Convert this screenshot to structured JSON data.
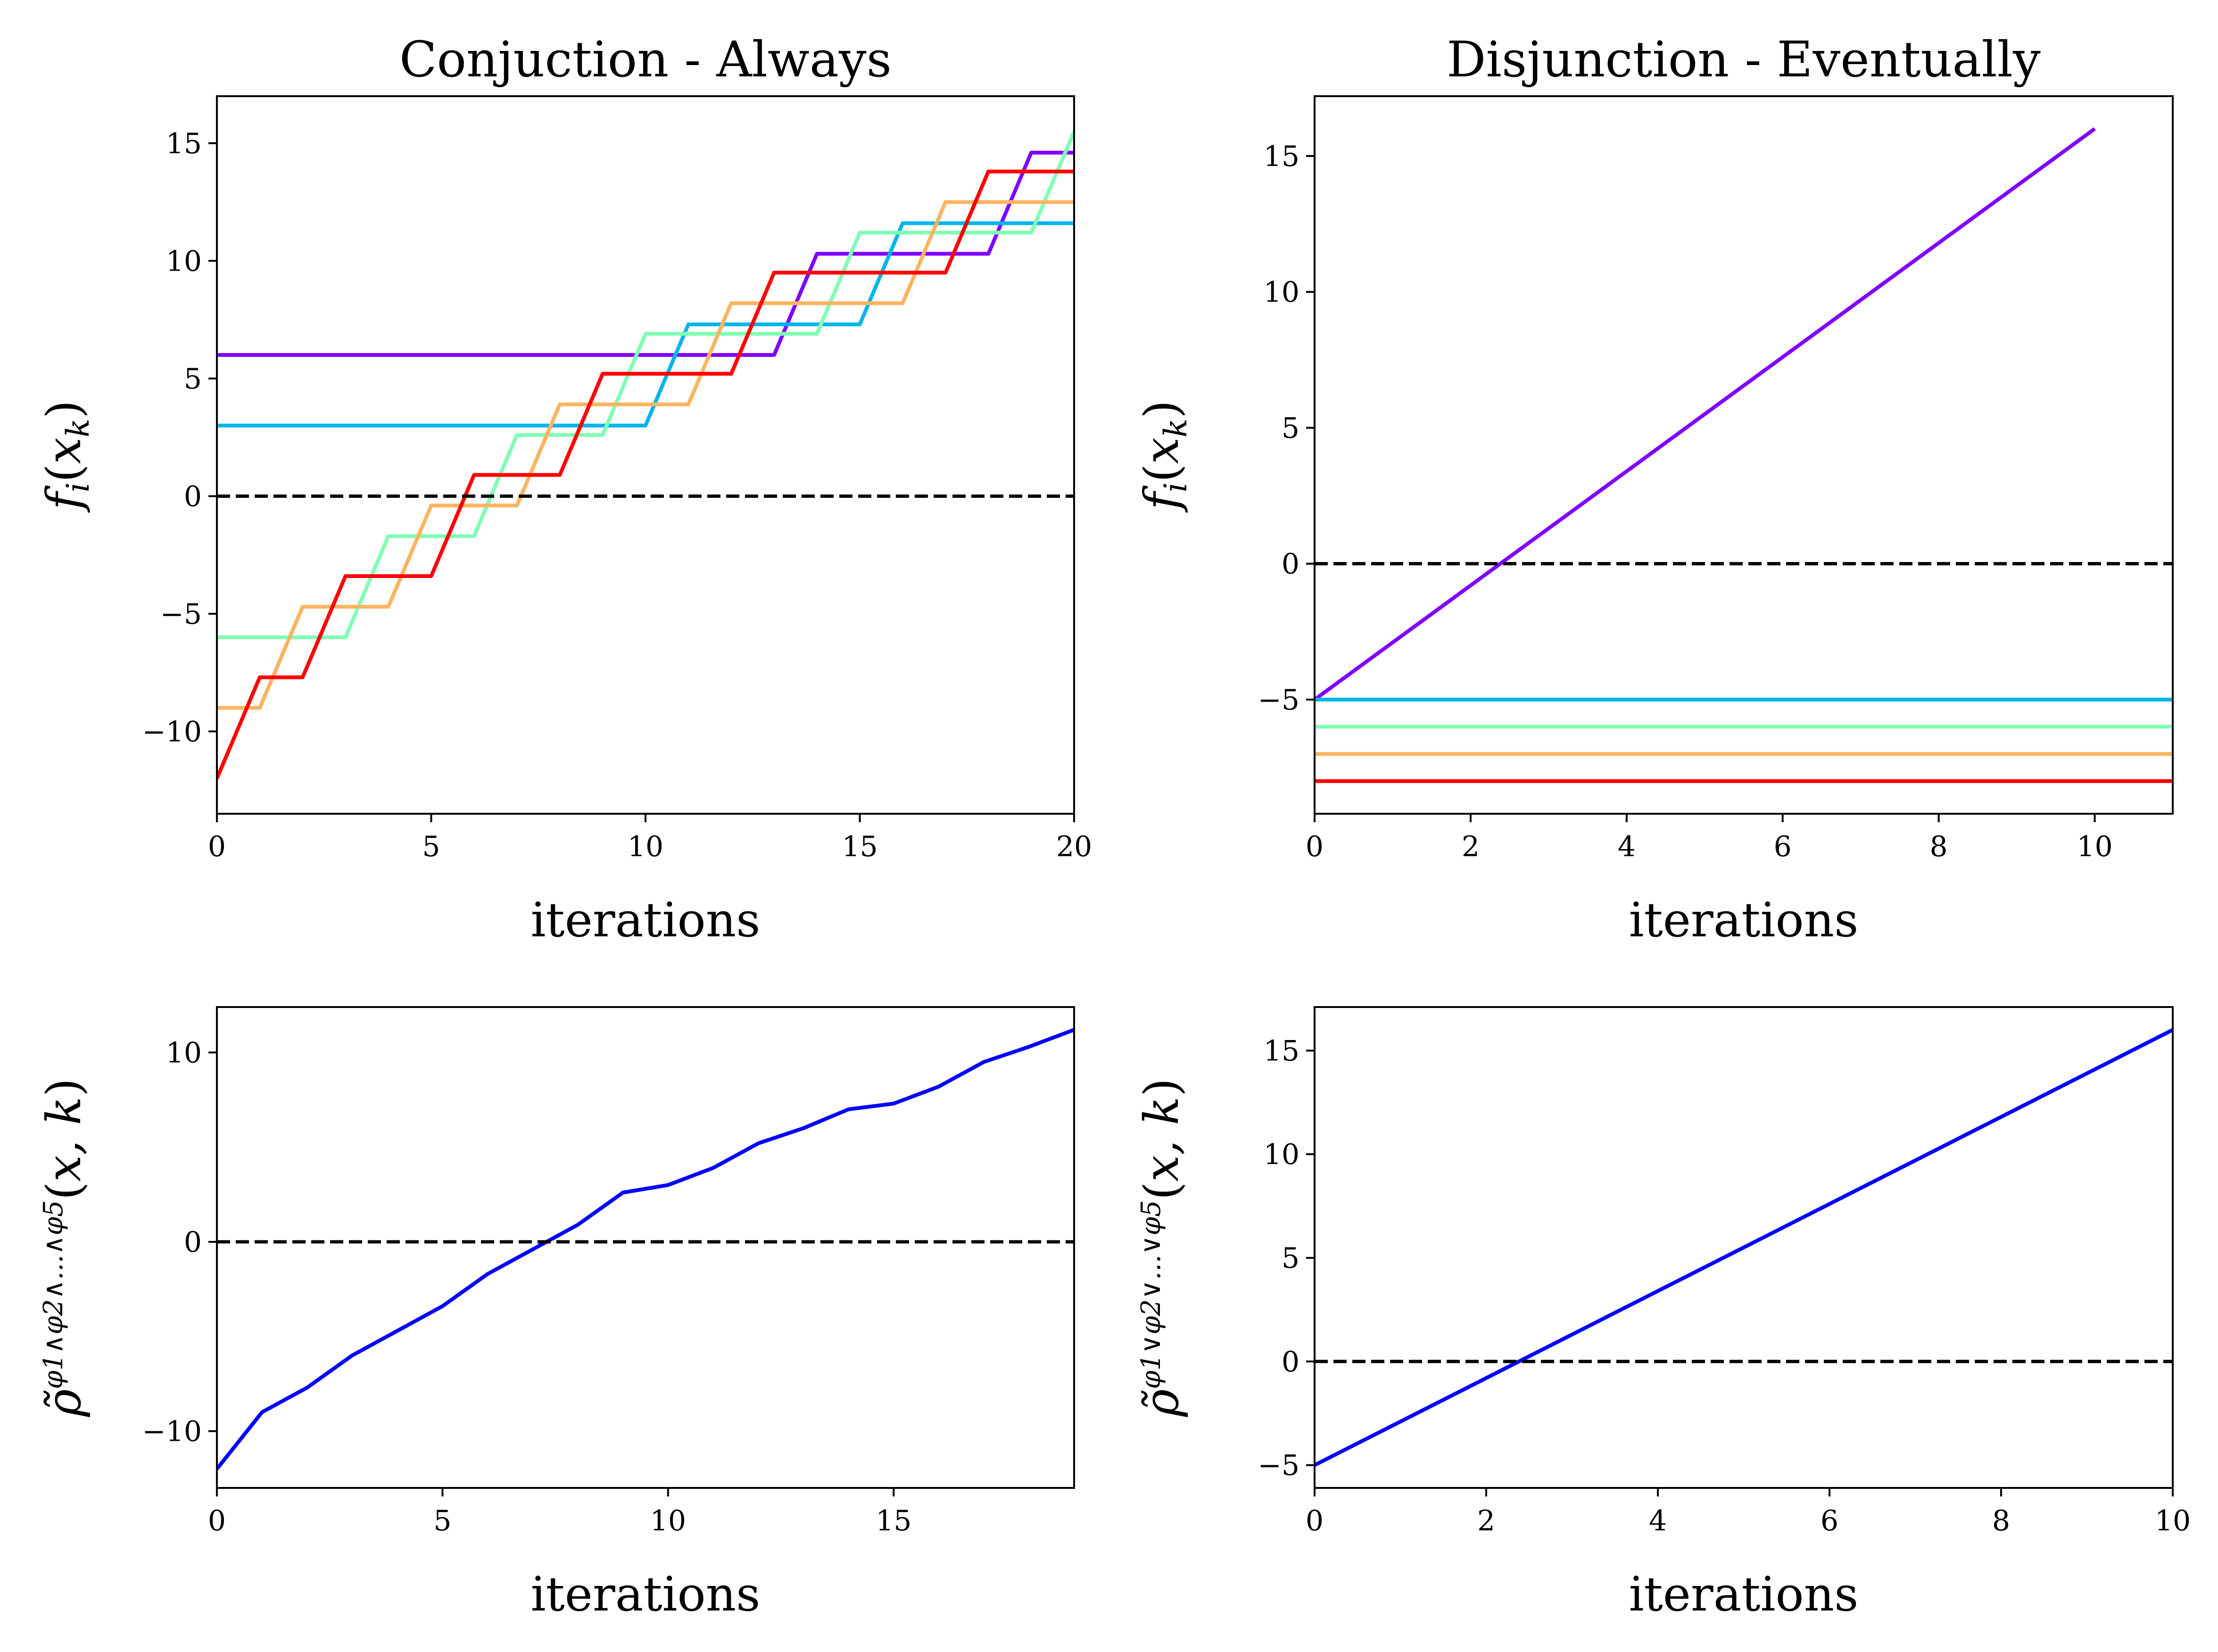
{
  "chart_data": [
    {
      "id": "conj-top",
      "type": "line",
      "title": "Conjuction - Always",
      "xlabel": "iterations",
      "ylabel": {
        "base": "f",
        "sub": "i",
        "open": "(",
        "var": "x",
        "varsub": "k",
        "close": ")"
      },
      "xlim": [
        0,
        20
      ],
      "ylim": [
        -13.5,
        17
      ],
      "xticks": [
        0,
        5,
        10,
        15,
        20
      ],
      "yticks": [
        -10,
        -5,
        0,
        5,
        10,
        15
      ],
      "ytick_labels": [
        "−10",
        "−5",
        "0",
        "5",
        "10",
        "15"
      ],
      "reference_line": 0,
      "grid": false,
      "series": [
        {
          "color": "#8000ff",
          "x": [
            0,
            13,
            14,
            18,
            19,
            20
          ],
          "y": [
            6,
            6,
            10.3,
            10.3,
            14.6,
            14.6
          ],
          "step": true
        },
        {
          "color": "#00b4ec",
          "x": [
            0,
            10,
            11,
            15,
            16,
            20
          ],
          "y": [
            3,
            3,
            7.3,
            7.3,
            11.6,
            11.6
          ],
          "step": true
        },
        {
          "color": "#80ffb4",
          "x": [
            0,
            3,
            4,
            6,
            7,
            9,
            10,
            14,
            15,
            19,
            20
          ],
          "y": [
            -6,
            -6,
            -1.7,
            -1.7,
            2.6,
            2.6,
            6.9,
            6.9,
            11.2,
            11.2,
            15.5
          ],
          "step": true
        },
        {
          "color": "#ffb360",
          "x": [
            0,
            1,
            2,
            4,
            5,
            7,
            8,
            11,
            12,
            16,
            17,
            20
          ],
          "y": [
            -9,
            -9,
            -4.7,
            -4.7,
            -0.4,
            -0.4,
            3.9,
            3.9,
            8.2,
            8.2,
            12.5,
            12.5
          ],
          "step": true
        },
        {
          "color": "#ff0000",
          "x": [
            0,
            1,
            2,
            3,
            5,
            6,
            8,
            9,
            12,
            13,
            17,
            18,
            20
          ],
          "y": [
            -12,
            -7.7,
            -7.7,
            -3.4,
            -3.4,
            0.9,
            0.9,
            5.2,
            5.2,
            9.5,
            9.5,
            13.8,
            13.8
          ],
          "step": true
        }
      ]
    },
    {
      "id": "disj-top",
      "type": "line",
      "title": "Disjunction - Eventually",
      "xlabel": "iterations",
      "ylabel": {
        "base": "f",
        "sub": "i",
        "open": "(",
        "var": "x",
        "varsub": "k",
        "close": ")"
      },
      "xlim": [
        0,
        11
      ],
      "ylim": [
        -9.2,
        17.2
      ],
      "xticks": [
        0,
        2,
        4,
        6,
        8,
        10
      ],
      "yticks": [
        -5,
        0,
        5,
        10,
        15
      ],
      "ytick_labels": [
        "−5",
        "0",
        "5",
        "10",
        "15"
      ],
      "reference_line": 0,
      "grid": false,
      "series": [
        {
          "color": "#8000ff",
          "x": [
            0,
            10
          ],
          "y": [
            -5,
            16
          ]
        },
        {
          "color": "#00b4ec",
          "x": [
            0,
            11
          ],
          "y": [
            -5,
            -5
          ]
        },
        {
          "color": "#80ffb4",
          "x": [
            0,
            11
          ],
          "y": [
            -6,
            -6
          ]
        },
        {
          "color": "#ffb360",
          "x": [
            0,
            11
          ],
          "y": [
            -7,
            -7
          ]
        },
        {
          "color": "#ff0000",
          "x": [
            0,
            11
          ],
          "y": [
            -8,
            -8
          ]
        }
      ]
    },
    {
      "id": "conj-bottom",
      "type": "line",
      "title": "",
      "xlabel": "iterations",
      "ylabel": {
        "base": "ρ̃",
        "sup": "φ1∧φ2∧...∧φ5",
        "open": "(",
        "var": "x, k",
        "close": ")"
      },
      "xlim": [
        0,
        19
      ],
      "ylim": [
        -13,
        12.4
      ],
      "xticks": [
        0,
        5,
        10,
        15
      ],
      "yticks": [
        -10,
        0,
        10
      ],
      "ytick_labels": [
        "−10",
        "0",
        "10"
      ],
      "reference_line": 0,
      "grid": false,
      "series": [
        {
          "color": "#0000ff",
          "x": [
            0,
            1,
            2,
            3,
            4,
            5,
            6,
            7,
            8,
            9,
            10,
            11,
            12,
            13,
            14,
            15,
            16,
            17,
            18,
            19
          ],
          "y": [
            -12,
            -9,
            -7.7,
            -6,
            -4.7,
            -3.4,
            -1.7,
            -0.4,
            0.9,
            2.6,
            3,
            3.9,
            5.2,
            6,
            7,
            7.3,
            8.2,
            9.5,
            10.3,
            11.2
          ]
        }
      ]
    },
    {
      "id": "disj-bottom",
      "type": "line",
      "title": "",
      "xlabel": "iterations",
      "ylabel": {
        "base": "ρ̃",
        "sup": "φ1∨φ2∨...∨φ5",
        "open": "(",
        "var": "x, k",
        "close": ")"
      },
      "xlim": [
        0,
        10
      ],
      "ylim": [
        -6.1,
        17.1
      ],
      "xticks": [
        0,
        2,
        4,
        6,
        8,
        10
      ],
      "yticks": [
        -5,
        0,
        5,
        10,
        15
      ],
      "ytick_labels": [
        "−5",
        "0",
        "5",
        "10",
        "15"
      ],
      "reference_line": 0,
      "grid": false,
      "series": [
        {
          "color": "#0000ff",
          "x": [
            0,
            10
          ],
          "y": [
            -5,
            16
          ]
        }
      ]
    }
  ]
}
